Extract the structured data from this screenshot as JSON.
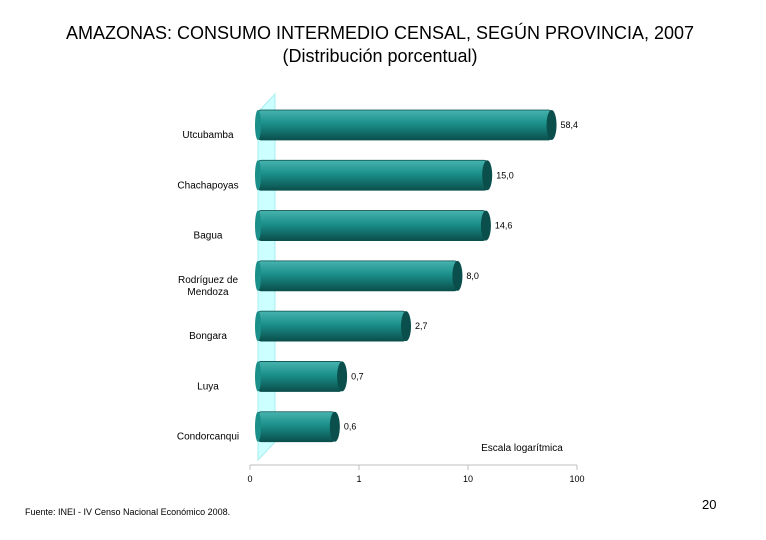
{
  "title_line1": "AMAZONAS: CONSUMO INTERMEDIO CENSAL, SEGÚN PROVINCIA, 2007",
  "title_line2": "(Distribución porcentual)",
  "source": "Fuente: INEI - IV Censo Nacional Económico 2008.",
  "page_number": "20",
  "chart_data": {
    "type": "bar",
    "orientation": "horizontal",
    "categories": [
      [
        "Utcubamba"
      ],
      [
        "Chachapoyas"
      ],
      [
        "Bagua"
      ],
      [
        "Rodríguez de",
        "Mendoza"
      ],
      [
        "Bongara"
      ],
      [
        "Luya"
      ],
      [
        "Condorcanqui"
      ]
    ],
    "values": [
      58.4,
      15.0,
      14.6,
      8.0,
      2.7,
      0.7,
      0.6
    ],
    "value_labels": [
      "58,4",
      "15,0",
      "14,6",
      "8,0",
      "2,7",
      "0,7",
      "0,6"
    ],
    "x_scale": "log",
    "x_ticks": [
      0,
      1,
      10,
      100
    ],
    "x_tick_labels": [
      "0",
      "1",
      "10",
      "100"
    ],
    "scale_note": "Escala logarítmica",
    "colors": {
      "bar": "#1b8f8a",
      "bar_light": "#47b3ae",
      "bar_dark": "#0a4f4c",
      "wall": "#ccffff",
      "wall_edge": "#a8eeee"
    }
  }
}
